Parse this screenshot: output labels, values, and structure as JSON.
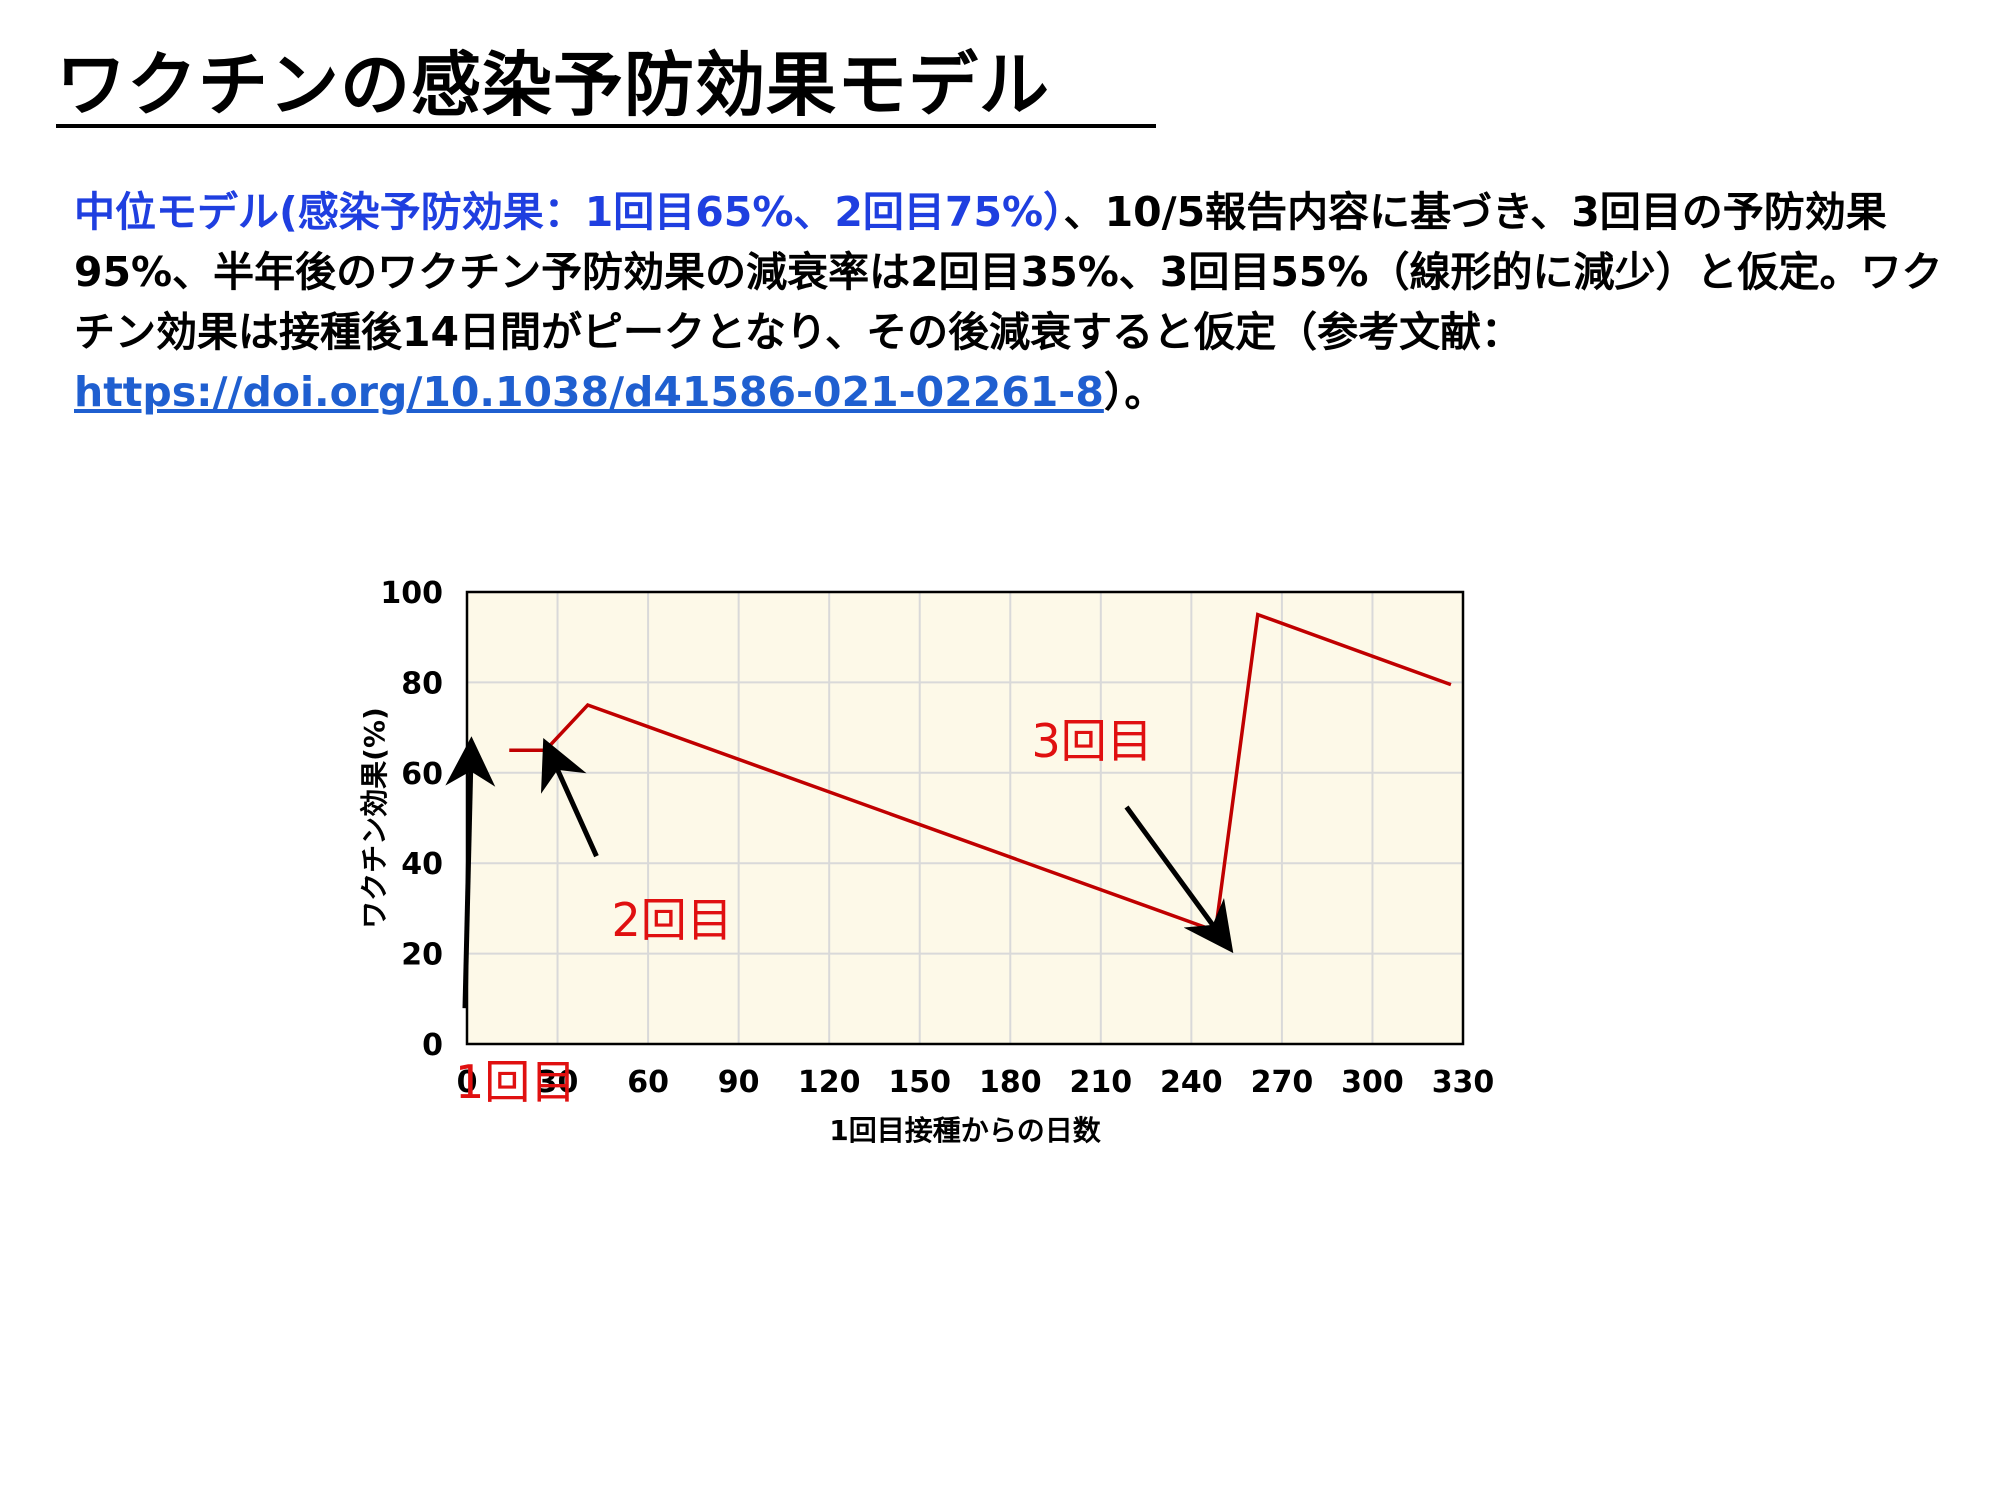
{
  "title": "ワクチンの感染予防効果モデル",
  "description": {
    "highlight": "中位モデル(感染予防効果：1回目65%、2回目75%）",
    "body": "、10/5報告内容に基づき、3回目の予防効果95%、半年後のワクチン予防効果の減衰率は2回目35%、3回目55%（線形的に減少）と仮定。ワクチン効果は接種後14日間がピークとなり、その後減衰すると仮定（参考文献：",
    "link": "https://doi.org/10.1038/d41586-021-02261-8",
    "tail": "）。"
  },
  "colors": {
    "line": "#c00000",
    "plot_bg": "#fdf9e8",
    "grid": "#d9d9d9",
    "annotation": "#e01010",
    "arrow": "#000000"
  },
  "chart_data": {
    "type": "line",
    "xlabel": "1回目接種からの日数",
    "ylabel": "ワクチン効果(%)",
    "xlim": [
      0,
      330
    ],
    "ylim": [
      0,
      100
    ],
    "xticks": [
      "0",
      "30",
      "60",
      "90",
      "120",
      "150",
      "180",
      "210",
      "240",
      "270",
      "300",
      "330"
    ],
    "yticks": [
      "0",
      "20",
      "40",
      "60",
      "80",
      "100"
    ],
    "grid": true,
    "series": [
      {
        "x": [
          14,
          26,
          40,
          248,
          262,
          326
        ],
        "y": [
          65,
          65,
          75,
          25,
          95,
          79.5
        ]
      }
    ],
    "annotations": [
      {
        "text": "1回目",
        "arrow_to": [
          0,
          65
        ]
      },
      {
        "text": "2回目",
        "arrow_to": [
          26,
          65
        ]
      },
      {
        "text": "3回目",
        "arrow_to": [
          248,
          25
        ]
      }
    ]
  }
}
